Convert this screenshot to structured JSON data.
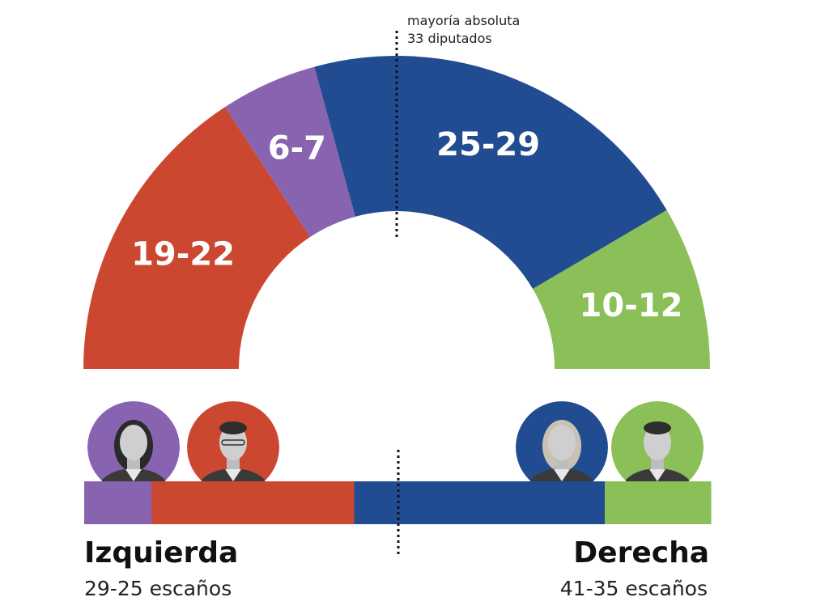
{
  "chart_data": {
    "type": "hemicycle",
    "total_seats": 65,
    "majority": {
      "line1": "mayoría absoluta",
      "line2": "33 diputados"
    },
    "segments": [
      {
        "label": "19-22",
        "seats": 20.5,
        "color": "#cc4730"
      },
      {
        "label": "6-7",
        "seats": 6.5,
        "color": "#8863b0"
      },
      {
        "label": "25-29",
        "seats": 27,
        "color": "#224c91"
      },
      {
        "label": "10-12",
        "seats": 11,
        "color": "#8bbf57"
      }
    ],
    "bar": [
      {
        "seats": 7,
        "color": "#8863b0"
      },
      {
        "seats": 21,
        "color": "#cc4730"
      },
      {
        "seats": 26,
        "color": "#224c91"
      },
      {
        "seats": 11,
        "color": "#8bbf57"
      }
    ],
    "blocks": {
      "left": {
        "title": "Izquierda",
        "subtitle": "29-25 escaños"
      },
      "right": {
        "title": "Derecha",
        "subtitle": "41-35 escaños"
      }
    },
    "avatars": [
      {
        "id": "avatar-purple-candidate",
        "color": "#8863b0",
        "side": "left"
      },
      {
        "id": "avatar-red-candidate",
        "color": "#cc4730",
        "side": "left"
      },
      {
        "id": "avatar-blue-candidate",
        "color": "#224c91",
        "side": "right"
      },
      {
        "id": "avatar-green-candidate",
        "color": "#8bbf57",
        "side": "right"
      }
    ]
  }
}
